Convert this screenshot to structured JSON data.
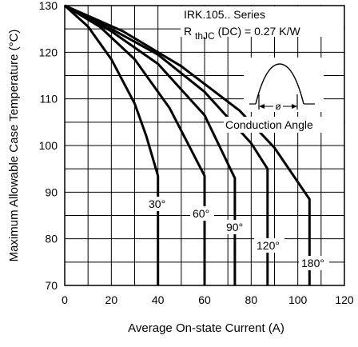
{
  "chart_data": {
    "type": "line",
    "title": "",
    "xlabel": "Average On-state Current (A)",
    "ylabel": "Maximum Allowable Case Temperature (°C)",
    "xlim": [
      0,
      120
    ],
    "ylim": [
      70,
      130
    ],
    "x_ticks": [
      "0",
      "20",
      "40",
      "60",
      "80",
      "100",
      "120"
    ],
    "y_ticks": [
      "70",
      "80",
      "90",
      "100",
      "110",
      "120",
      "130"
    ],
    "grid": true,
    "info_box": {
      "series_line": "IRK.105.. Series",
      "rth_symbol": "R",
      "rth_subscript": "thJC",
      "rth_rest": "(DC) = 0.27 K/W"
    },
    "inset": {
      "phi_label": "ø",
      "caption": "Conduction Angle"
    },
    "series": [
      {
        "name": "30°",
        "x": [
          0,
          10,
          20,
          30,
          35,
          40
        ],
        "y": [
          130,
          125.5,
          118.5,
          109,
          102,
          93.5
        ]
      },
      {
        "name": "60°",
        "x": [
          0,
          15,
          30,
          45,
          60
        ],
        "y": [
          130,
          125.5,
          118.5,
          108,
          93.5
        ]
      },
      {
        "name": "90°",
        "x": [
          0,
          20,
          40,
          60,
          73
        ],
        "y": [
          130,
          124.5,
          117.5,
          106.5,
          93
        ]
      },
      {
        "name": "120°",
        "x": [
          0,
          20,
          40,
          60,
          80,
          87
        ],
        "y": [
          130,
          125,
          119.5,
          111.5,
          100.5,
          95
        ]
      },
      {
        "name": "180°",
        "x": [
          0,
          25,
          50,
          75,
          90,
          105
        ],
        "y": [
          130,
          124.5,
          117,
          107.5,
          99.5,
          88.5
        ]
      }
    ]
  }
}
